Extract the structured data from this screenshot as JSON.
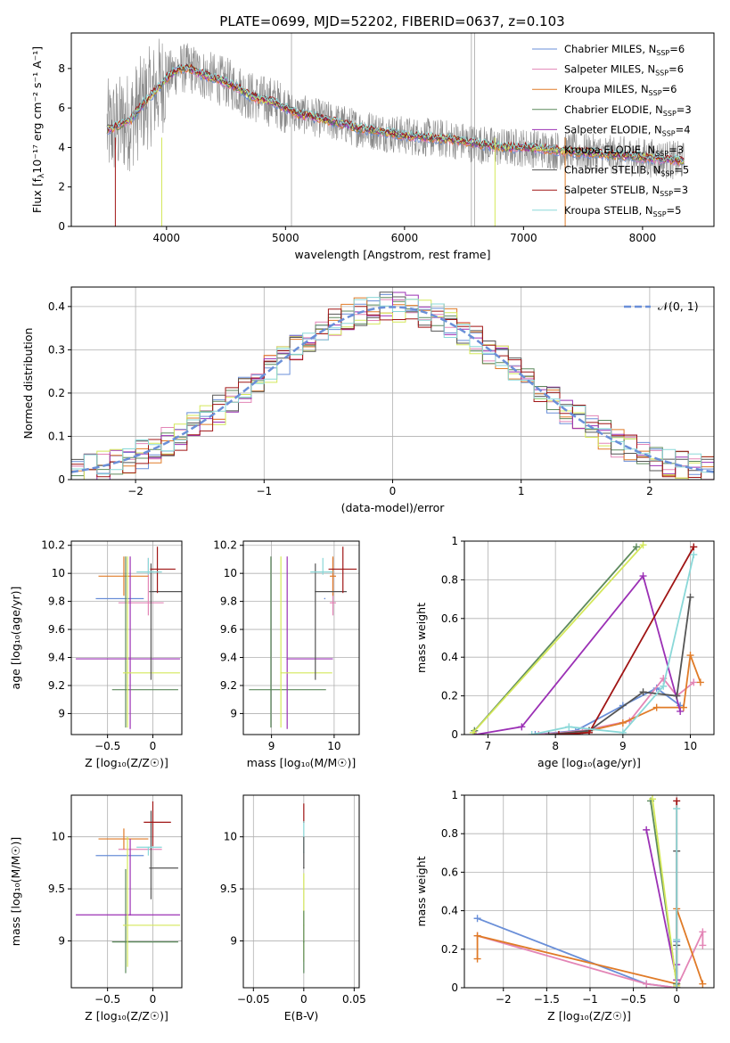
{
  "figure": {
    "title": "PLATE=0699, MJD=52202, FIBERID=0637, z=0.103"
  },
  "colors": {
    "Chabrier MILES": "#6a8fd8",
    "Salpeter MILES": "#e385b6",
    "Kroupa MILES": "#e07b28",
    "Chabrier ELODIE": "#5d8a5d",
    "Salpeter ELODIE": "#9b30b5",
    "Kroupa ELODIE": "#d4e85a",
    "Chabrier STELIB": "#555555",
    "Salpeter STELIB": "#a01515",
    "Kroupa STELIB": "#8ad8d8",
    "data": "#888888",
    "gauss": "#6a8fd8"
  },
  "chart_data": [
    {
      "id": "spectrum",
      "type": "line",
      "title": "PLATE=0699, MJD=52202, FIBERID=0637, z=0.103",
      "xlabel": "wavelength [Angstrom, rest frame]",
      "ylabel_main": "Flux [f",
      "ylabel_sub": "λ",
      "ylabel_rest": "10⁻¹⁷ erg cm⁻² s⁻¹ A⁻¹]",
      "xlim": [
        3200,
        8600
      ],
      "ylim": [
        0,
        9.8
      ],
      "xticks": [
        4000,
        5000,
        6000,
        7000,
        8000
      ],
      "yticks": [
        0,
        2,
        4,
        6,
        8
      ],
      "grid": false,
      "legend_position": "top-right",
      "legend": [
        {
          "model": "Chabrier MILES",
          "label": "Chabrier MILES, N",
          "sub": "SSP",
          "tail": "=6"
        },
        {
          "model": "Salpeter MILES",
          "label": "Salpeter MILES, N",
          "sub": "SSP",
          "tail": "=6"
        },
        {
          "model": "Kroupa MILES",
          "label": "Kroupa MILES, N",
          "sub": "SSP",
          "tail": "=6"
        },
        {
          "model": "Chabrier ELODIE",
          "label": "Chabrier ELODIE, N",
          "sub": "SSP",
          "tail": "=3"
        },
        {
          "model": "Salpeter ELODIE",
          "label": "Salpeter ELODIE, N",
          "sub": "SSP",
          "tail": "=4"
        },
        {
          "model": "Kroupa ELODIE",
          "label": "Kroupa ELODIE, N",
          "sub": "SSP",
          "tail": "=3"
        },
        {
          "model": "Chabrier STELIB",
          "label": "Chabrier STELIB, N",
          "sub": "SSP",
          "tail": "=5"
        },
        {
          "model": "Salpeter STELIB",
          "label": "Salpeter STELIB, N",
          "sub": "SSP",
          "tail": "=3"
        },
        {
          "model": "Kroupa STELIB",
          "label": "Kroupa STELIB, N",
          "sub": "SSP",
          "tail": "=5"
        }
      ],
      "continuum": [
        [
          3500,
          4.9
        ],
        [
          3600,
          5.1
        ],
        [
          3700,
          5.4
        ],
        [
          3800,
          6.2
        ],
        [
          3900,
          6.8
        ],
        [
          4000,
          7.5
        ],
        [
          4100,
          8.0
        ],
        [
          4200,
          8.0
        ],
        [
          4300,
          7.7
        ],
        [
          4400,
          7.5
        ],
        [
          4500,
          7.3
        ],
        [
          4600,
          7.0
        ],
        [
          4700,
          6.6
        ],
        [
          4800,
          6.4
        ],
        [
          4900,
          6.3
        ],
        [
          5000,
          6.0
        ],
        [
          5100,
          5.7
        ],
        [
          5200,
          5.6
        ],
        [
          5400,
          5.3
        ],
        [
          5600,
          5.0
        ],
        [
          5800,
          4.8
        ],
        [
          6000,
          4.6
        ],
        [
          6200,
          4.5
        ],
        [
          6400,
          4.4
        ],
        [
          6600,
          4.2
        ],
        [
          6800,
          4.0
        ],
        [
          7000,
          4.0
        ],
        [
          7200,
          3.9
        ],
        [
          7400,
          3.8
        ],
        [
          7600,
          3.7
        ],
        [
          7800,
          3.6
        ],
        [
          8000,
          3.5
        ],
        [
          8200,
          3.4
        ],
        [
          8350,
          3.3
        ]
      ]
    },
    {
      "id": "residuals",
      "type": "line",
      "xlabel": "(data-model)/error",
      "ylabel": "Normed distribution",
      "xlim": [
        -2.5,
        2.5
      ],
      "ylim": [
        0,
        0.445
      ],
      "xticks": [
        -2,
        -1,
        0,
        1,
        2
      ],
      "yticks": [
        0.0,
        0.1,
        0.2,
        0.3,
        0.4
      ],
      "grid": true,
      "legend_position": "top-right",
      "gauss_label": "𝒩(0, 1)",
      "bin_width": 0.1
    },
    {
      "id": "age-vs-Z",
      "type": "scatter",
      "xlabel": "Z [log₁₀(Z/Z☉)]",
      "ylabel": "age  [log₁₀(age/yr)]",
      "xlim": [
        -0.9,
        0.32
      ],
      "ylim": [
        8.85,
        10.23
      ],
      "xticks": [
        -0.5,
        0.0
      ],
      "yticks": [
        9.0,
        9.2,
        9.4,
        9.6,
        9.8,
        10.0,
        10.2
      ],
      "grid": true,
      "points": [
        {
          "model": "Chabrier MILES",
          "x": -0.28,
          "y": 9.82,
          "xerr": [
            0.35,
            0.18
          ],
          "yerr": [
            0.0,
            0.0
          ]
        },
        {
          "model": "Salpeter MILES",
          "x": -0.05,
          "y": 9.79,
          "xerr": [
            0.33,
            0.17
          ],
          "yerr": [
            0.09,
            0.32
          ]
        },
        {
          "model": "Kroupa MILES",
          "x": -0.32,
          "y": 9.98,
          "xerr": [
            0.28,
            0.27
          ],
          "yerr": [
            0.14,
            0.14
          ]
        },
        {
          "model": "Chabrier ELODIE",
          "x": -0.3,
          "y": 9.17,
          "xerr": [
            0.15,
            0.58
          ],
          "yerr": [
            0.27,
            0.95
          ]
        },
        {
          "model": "Salpeter ELODIE",
          "x": -0.25,
          "y": 9.39,
          "xerr": [
            0.6,
            0.55
          ],
          "yerr": [
            0.5,
            0.73
          ]
        },
        {
          "model": "Kroupa ELODIE",
          "x": -0.28,
          "y": 9.29,
          "xerr": [
            0.05,
            0.58
          ],
          "yerr": [
            0.39,
            0.83
          ]
        },
        {
          "model": "Chabrier STELIB",
          "x": -0.02,
          "y": 9.87,
          "xerr": [
            0.02,
            0.35
          ],
          "yerr": [
            0.63,
            0.2
          ]
        },
        {
          "model": "Salpeter STELIB",
          "x": 0.05,
          "y": 10.03,
          "xerr": [
            0.08,
            0.2
          ],
          "yerr": [
            0.17,
            0.16
          ]
        },
        {
          "model": "Kroupa STELIB",
          "x": -0.05,
          "y": 10.01,
          "xerr": [
            0.13,
            0.15
          ],
          "yerr": [
            0.02,
            0.1
          ]
        }
      ]
    },
    {
      "id": "age-vs-mass",
      "type": "scatter",
      "xlabel": "mass [log₁₀(M/M☉)]",
      "xlim": [
        8.55,
        10.4
      ],
      "ylim": [
        8.85,
        10.23
      ],
      "xticks": [
        9,
        10
      ],
      "yticks": [
        9.0,
        9.2,
        9.4,
        9.6,
        9.8,
        10.0,
        10.2
      ],
      "grid": true,
      "points": [
        {
          "model": "Chabrier MILES",
          "x": 9.85,
          "y": 9.82,
          "xerr": [
            0.0,
            0.0
          ],
          "yerr": [
            0.0,
            0.0
          ]
        },
        {
          "model": "Salpeter MILES",
          "x": 9.98,
          "y": 9.79,
          "xerr": [
            0.05,
            0.05
          ],
          "yerr": [
            0.09,
            0.32
          ]
        },
        {
          "model": "Kroupa MILES",
          "x": 9.98,
          "y": 9.98,
          "xerr": [
            0.05,
            0.05
          ],
          "yerr": [
            0.14,
            0.14
          ]
        },
        {
          "model": "Chabrier ELODIE",
          "x": 8.99,
          "y": 9.17,
          "xerr": [
            0.35,
            0.88
          ],
          "yerr": [
            0.27,
            0.95
          ]
        },
        {
          "model": "Salpeter ELODIE",
          "x": 9.25,
          "y": 9.39,
          "xerr": [
            0.0,
            0.73
          ],
          "yerr": [
            0.5,
            0.73
          ]
        },
        {
          "model": "Kroupa ELODIE",
          "x": 9.15,
          "y": 9.29,
          "xerr": [
            0.0,
            0.82
          ],
          "yerr": [
            0.39,
            0.83
          ]
        },
        {
          "model": "Chabrier STELIB",
          "x": 9.7,
          "y": 9.87,
          "xerr": [
            0.0,
            0.5
          ],
          "yerr": [
            0.63,
            0.2
          ]
        },
        {
          "model": "Salpeter STELIB",
          "x": 10.14,
          "y": 10.03,
          "xerr": [
            0.23,
            0.22
          ],
          "yerr": [
            0.17,
            0.16
          ]
        },
        {
          "model": "Kroupa STELIB",
          "x": 9.82,
          "y": 10.01,
          "xerr": [
            0.2,
            0.16
          ],
          "yerr": [
            0.02,
            0.1
          ]
        }
      ]
    },
    {
      "id": "weight-vs-age",
      "type": "line",
      "xlabel": "age  [log₁₀(age/yr)]",
      "ylabel": "mass weight",
      "xlim": [
        6.65,
        10.35
      ],
      "ylim": [
        0,
        1.0
      ],
      "xticks": [
        7,
        8,
        9,
        10
      ],
      "yticks": [
        0.0,
        0.2,
        0.4,
        0.6,
        0.8,
        1.0
      ],
      "grid": true,
      "series": [
        {
          "model": "Chabrier MILES",
          "x": [
            7.7,
            8.3,
            9.0,
            9.5,
            9.85
          ],
          "y": [
            0.0,
            0.02,
            0.15,
            0.24,
            0.15
          ]
        },
        {
          "model": "Salpeter MILES",
          "x": [
            7.75,
            8.4,
            9.1,
            9.6,
            9.8,
            10.05
          ],
          "y": [
            0.0,
            0.02,
            0.07,
            0.29,
            0.2,
            0.27
          ]
        },
        {
          "model": "Kroupa MILES",
          "x": [
            8.3,
            8.5,
            9.0,
            9.5,
            9.9,
            10.0,
            10.15
          ],
          "y": [
            0.0,
            0.02,
            0.06,
            0.14,
            0.14,
            0.41,
            0.27
          ]
        },
        {
          "model": "Chabrier ELODIE",
          "x": [
            6.8,
            9.2
          ],
          "y": [
            0.02,
            0.97
          ]
        },
        {
          "model": "Salpeter ELODIE",
          "x": [
            6.82,
            7.5,
            9.3,
            9.85
          ],
          "y": [
            0.0,
            0.04,
            0.82,
            0.12
          ]
        },
        {
          "model": "Kroupa ELODIE",
          "x": [
            6.78,
            9.3
          ],
          "y": [
            0.01,
            0.98
          ]
        },
        {
          "model": "Chabrier STELIB",
          "x": [
            7.9,
            8.5,
            9.3,
            9.8,
            10.0
          ],
          "y": [
            0.0,
            0.02,
            0.22,
            0.2,
            0.71
          ]
        },
        {
          "model": "Salpeter STELIB",
          "x": [
            8.05,
            8.5,
            10.05
          ],
          "y": [
            0.0,
            0.01,
            0.97
          ]
        },
        {
          "model": "Kroupa STELIB",
          "x": [
            7.65,
            8.2,
            9.0,
            9.6,
            10.05
          ],
          "y": [
            0.0,
            0.04,
            0.01,
            0.25,
            0.93
          ]
        }
      ]
    },
    {
      "id": "mass-vs-Z",
      "type": "scatter",
      "xlabel": "Z [log₁₀(Z/Z☉)]",
      "ylabel": "mass [log₁₀(M/M☉)]",
      "xlim": [
        -0.9,
        0.32
      ],
      "ylim": [
        8.55,
        10.4
      ],
      "xticks": [
        -0.5,
        0.0
      ],
      "yticks": [
        9.0,
        9.5,
        10.0
      ],
      "grid": true,
      "points": [
        {
          "model": "Chabrier MILES",
          "x": -0.28,
          "y": 9.82,
          "xerr": [
            0.35,
            0.18
          ],
          "yerr": [
            0.0,
            0.0
          ]
        },
        {
          "model": "Salpeter MILES",
          "x": -0.05,
          "y": 9.88,
          "xerr": [
            0.33,
            0.15
          ],
          "yerr": [
            0.0,
            0.0
          ]
        },
        {
          "model": "Kroupa MILES",
          "x": -0.32,
          "y": 9.98,
          "xerr": [
            0.28,
            0.27
          ],
          "yerr": [
            0.1,
            0.1
          ]
        },
        {
          "model": "Chabrier ELODIE",
          "x": -0.3,
          "y": 8.99,
          "xerr": [
            0.15,
            0.58
          ],
          "yerr": [
            0.3,
            0.7
          ]
        },
        {
          "model": "Salpeter ELODIE",
          "x": -0.25,
          "y": 9.25,
          "xerr": [
            0.6,
            0.55
          ],
          "yerr": [
            0.0,
            0.73
          ]
        },
        {
          "model": "Kroupa ELODIE",
          "x": -0.28,
          "y": 9.15,
          "xerr": [
            0.05,
            0.58
          ],
          "yerr": [
            0.4,
            0.85
          ]
        },
        {
          "model": "Chabrier STELIB",
          "x": -0.02,
          "y": 9.7,
          "xerr": [
            0.02,
            0.3
          ],
          "yerr": [
            0.3,
            0.55
          ]
        },
        {
          "model": "Salpeter STELIB",
          "x": 0.0,
          "y": 10.14,
          "xerr": [
            0.1,
            0.2
          ],
          "yerr": [
            0.23,
            0.2
          ]
        },
        {
          "model": "Kroupa STELIB",
          "x": -0.05,
          "y": 9.9,
          "xerr": [
            0.13,
            0.15
          ],
          "yerr": [
            0.08,
            0.0
          ]
        }
      ]
    },
    {
      "id": "mass-vs-EBV",
      "type": "scatter",
      "xlabel": "E(B-V)",
      "xlim": [
        -0.06,
        0.055
      ],
      "ylim": [
        8.55,
        10.4
      ],
      "xticks": [
        -0.05,
        0.0,
        0.05
      ],
      "yticks": [
        9.0,
        9.5,
        10.0
      ],
      "grid": true,
      "points": [
        {
          "model": "Salpeter STELIB",
          "x": 0.0,
          "y": 10.14,
          "yerr": [
            0.0,
            0.18
          ]
        },
        {
          "model": "Kroupa STELIB",
          "x": 0.0,
          "y": 9.85,
          "yerr": [
            0.0,
            0.3
          ]
        },
        {
          "model": "Chabrier STELIB",
          "x": 0.0,
          "y": 9.7,
          "yerr": [
            0.0,
            0.3
          ]
        },
        {
          "model": "Kroupa ELODIE",
          "x": 0.0,
          "y": 9.15,
          "yerr": [
            0.35,
            0.5
          ]
        },
        {
          "model": "Chabrier ELODIE",
          "x": 0.0,
          "y": 8.99,
          "yerr": [
            0.3,
            0.3
          ]
        }
      ]
    },
    {
      "id": "weight-vs-Z",
      "type": "line",
      "xlabel": "Z [log₁₀(Z/Z☉)]",
      "ylabel": "mass weight",
      "xlim": [
        -2.45,
        0.43
      ],
      "ylim": [
        0,
        1.0
      ],
      "xticks": [
        -2.0,
        -1.5,
        -1.0,
        -0.5,
        0.0
      ],
      "yticks": [
        0.0,
        0.2,
        0.4,
        0.6,
        0.8,
        1.0
      ],
      "grid": true,
      "series": [
        {
          "model": "Chabrier MILES",
          "x": [
            -2.3,
            -0.35,
            0.0,
            0.0
          ],
          "y": [
            0.36,
            0.02,
            0.0,
            0.24
          ]
        },
        {
          "model": "Salpeter MILES",
          "x": [
            -2.3,
            -0.35,
            0.0,
            0.3,
            0.3
          ],
          "y": [
            0.27,
            0.02,
            0.0,
            0.29,
            0.22
          ]
        },
        {
          "model": "Kroupa MILES",
          "x": [
            -2.3,
            -2.3,
            0.0,
            0.0,
            0.3
          ],
          "y": [
            0.15,
            0.27,
            0.02,
            0.41,
            0.02
          ]
        },
        {
          "model": "Chabrier ELODIE",
          "x": [
            -0.3,
            0.0
          ],
          "y": [
            0.97,
            0.02
          ]
        },
        {
          "model": "Salpeter ELODIE",
          "x": [
            -0.35,
            0.0,
            0.0
          ],
          "y": [
            0.82,
            0.04,
            0.12
          ]
        },
        {
          "model": "Kroupa ELODIE",
          "x": [
            -0.28,
            0.0
          ],
          "y": [
            0.98,
            0.01
          ]
        },
        {
          "model": "Chabrier STELIB",
          "x": [
            0.0,
            0.0,
            0.0
          ],
          "y": [
            0.0,
            0.22,
            0.71
          ]
        },
        {
          "model": "Salpeter STELIB",
          "x": [
            0.0,
            0.0
          ],
          "y": [
            0.0,
            0.97
          ]
        },
        {
          "model": "Kroupa STELIB",
          "x": [
            0.0,
            0.0,
            0.0
          ],
          "y": [
            0.0,
            0.25,
            0.93
          ]
        }
      ]
    }
  ]
}
